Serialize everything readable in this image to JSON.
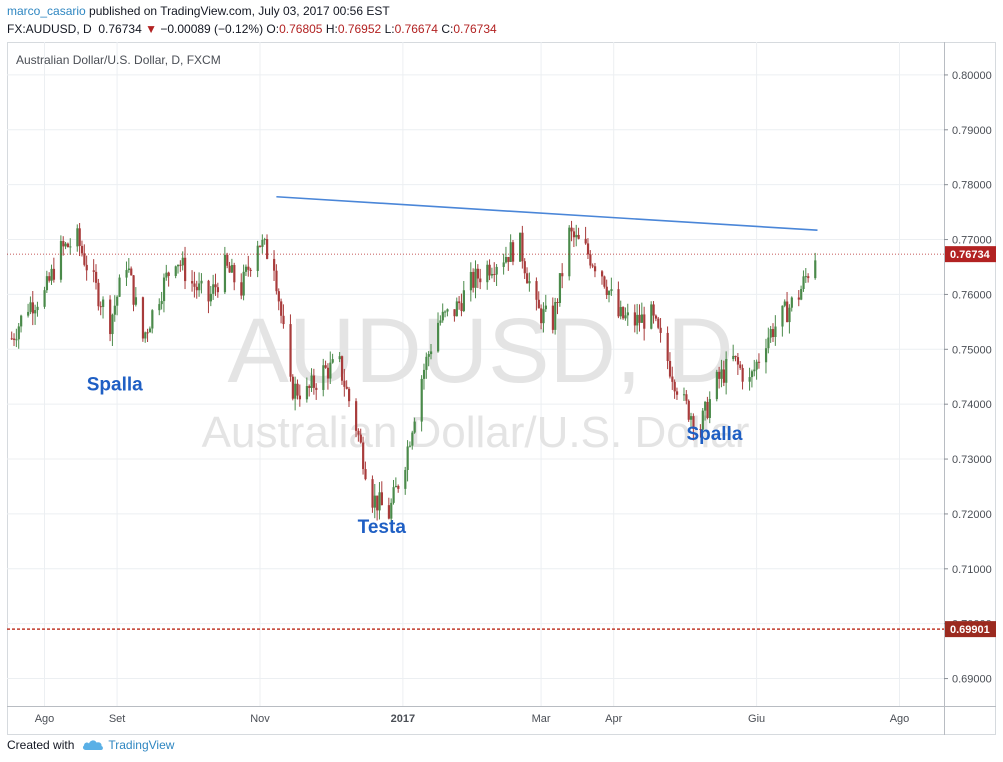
{
  "header": {
    "author": "marco_casario",
    "published": "published on TradingView.com, July 03, 2017 00:56 EST",
    "symbol": "FX:AUDUSD, D",
    "last": "0.76734",
    "change_arrow": "▼",
    "change": "−0.00089 (−0.12%)",
    "o_label": "O:",
    "o_value": "0.76805",
    "h_label": "H:",
    "h_value": "0.76952",
    "l_label": "L:",
    "l_value": "0.76674",
    "c_label": "C:",
    "c_value": "0.76734"
  },
  "footer": {
    "created_with": "Created with",
    "brand": "TradingView",
    "brand_icon": "cloud-icon"
  },
  "colors": {
    "up": "#4a8a4a",
    "down": "#a83b3b",
    "trendline": "#4a86d8",
    "annotation": "#1f5fc4",
    "price_line": "#b22222",
    "support_line": "#c0392b",
    "grid": "#eceff2",
    "watermark": "#e4e4e4"
  },
  "chart_data": {
    "type": "candlestick",
    "title": "Australian Dollar/U.S. Dollar, D, FXCM",
    "watermark_symbol": "AUDUSD, D",
    "watermark_name": "Australian Dollar/U.S. Dollar",
    "ylim": [
      0.685,
      0.806
    ],
    "y_ticks": [
      "0.69000",
      "0.70000",
      "0.71000",
      "0.72000",
      "0.73000",
      "0.74000",
      "0.75000",
      "0.76000",
      "0.77000",
      "0.78000",
      "0.79000",
      "0.80000"
    ],
    "x_ticks": [
      {
        "label": "Ago",
        "date": "2016-08-01",
        "bold": false
      },
      {
        "label": "Set",
        "date": "2016-09-01",
        "bold": false
      },
      {
        "label": "Nov",
        "date": "2016-11-01",
        "bold": false
      },
      {
        "label": "2017",
        "date": "2017-01-01",
        "bold": true
      },
      {
        "label": "Mar",
        "date": "2017-03-01",
        "bold": false
      },
      {
        "label": "Apr",
        "date": "2017-04-01",
        "bold": false
      },
      {
        "label": "Giu",
        "date": "2017-06-01",
        "bold": false
      },
      {
        "label": "Ago",
        "date": "2017-08-01",
        "bold": false
      }
    ],
    "x_range": [
      "2016-07-16",
      "2017-08-20"
    ],
    "current_price": {
      "value": 0.76734,
      "label": "0.76734"
    },
    "support": {
      "value": 0.69901,
      "label": "0.69901"
    },
    "trendline": [
      {
        "date": "2016-11-08",
        "value": 0.7778
      },
      {
        "date": "2017-06-27",
        "value": 0.7717
      }
    ],
    "annotations": [
      {
        "text": "Spalla",
        "date": "2016-08-31",
        "value": 0.7425
      },
      {
        "text": "Testa",
        "date": "2016-12-23",
        "value": 0.7165
      },
      {
        "text": "Spalla",
        "date": "2017-05-14",
        "value": 0.7335
      }
    ],
    "closes": [
      {
        "date": "2016-07-18",
        "close": 0.752
      },
      {
        "date": "2016-07-25",
        "close": 0.758
      },
      {
        "date": "2016-08-01",
        "close": 0.76
      },
      {
        "date": "2016-08-08",
        "close": 0.768
      },
      {
        "date": "2016-08-15",
        "close": 0.77
      },
      {
        "date": "2016-08-22",
        "close": 0.762
      },
      {
        "date": "2016-08-29",
        "close": 0.755
      },
      {
        "date": "2016-09-05",
        "close": 0.766
      },
      {
        "date": "2016-09-12",
        "close": 0.752
      },
      {
        "date": "2016-09-19",
        "close": 0.76
      },
      {
        "date": "2016-09-26",
        "close": 0.767
      },
      {
        "date": "2016-10-03",
        "close": 0.762
      },
      {
        "date": "2016-10-10",
        "close": 0.759
      },
      {
        "date": "2016-10-17",
        "close": 0.765
      },
      {
        "date": "2016-10-24",
        "close": 0.761
      },
      {
        "date": "2016-10-31",
        "close": 0.77
      },
      {
        "date": "2016-11-07",
        "close": 0.766
      },
      {
        "date": "2016-11-14",
        "close": 0.743
      },
      {
        "date": "2016-11-21",
        "close": 0.742
      },
      {
        "date": "2016-11-28",
        "close": 0.746
      },
      {
        "date": "2016-12-05",
        "close": 0.747
      },
      {
        "date": "2016-12-12",
        "close": 0.736
      },
      {
        "date": "2016-12-19",
        "close": 0.723
      },
      {
        "date": "2016-12-26",
        "close": 0.72
      },
      {
        "date": "2017-01-02",
        "close": 0.73
      },
      {
        "date": "2017-01-09",
        "close": 0.745
      },
      {
        "date": "2017-01-16",
        "close": 0.755
      },
      {
        "date": "2017-01-23",
        "close": 0.757
      },
      {
        "date": "2017-01-30",
        "close": 0.762
      },
      {
        "date": "2017-02-06",
        "close": 0.765
      },
      {
        "date": "2017-02-13",
        "close": 0.767
      },
      {
        "date": "2017-02-20",
        "close": 0.769
      },
      {
        "date": "2017-02-27",
        "close": 0.757
      },
      {
        "date": "2017-03-06",
        "close": 0.755
      },
      {
        "date": "2017-03-13",
        "close": 0.771
      },
      {
        "date": "2017-03-20",
        "close": 0.768
      },
      {
        "date": "2017-03-27",
        "close": 0.764
      },
      {
        "date": "2017-04-03",
        "close": 0.756
      },
      {
        "date": "2017-04-10",
        "close": 0.755
      },
      {
        "date": "2017-04-17",
        "close": 0.756
      },
      {
        "date": "2017-04-24",
        "close": 0.748
      },
      {
        "date": "2017-05-01",
        "close": 0.74
      },
      {
        "date": "2017-05-08",
        "close": 0.736
      },
      {
        "date": "2017-05-15",
        "close": 0.744
      },
      {
        "date": "2017-05-22",
        "close": 0.748
      },
      {
        "date": "2017-05-29",
        "close": 0.744
      },
      {
        "date": "2017-06-05",
        "close": 0.752
      },
      {
        "date": "2017-06-12",
        "close": 0.756
      },
      {
        "date": "2017-06-19",
        "close": 0.76
      },
      {
        "date": "2017-06-26",
        "close": 0.7673
      }
    ]
  }
}
